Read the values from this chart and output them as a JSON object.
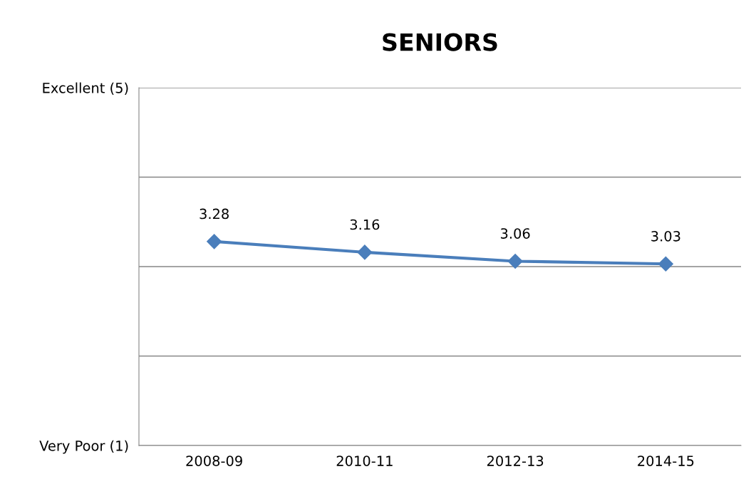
{
  "chart_data": {
    "type": "line",
    "title": "SENIORS",
    "categories": [
      "2008-09",
      "2010-11",
      "2012-13",
      "2014-15"
    ],
    "series": [
      {
        "color": "#4a7ebb",
        "values": [
          3.28,
          3.16,
          3.06,
          3.03
        ]
      }
    ],
    "ylim": [
      1,
      5
    ],
    "yticks": [
      {
        "value": 1,
        "label": "Very Poor (1)"
      },
      {
        "value": 2,
        "label": null
      },
      {
        "value": 3,
        "label": null
      },
      {
        "value": 4,
        "label": null
      },
      {
        "value": 5,
        "label": "Excellent (5)"
      }
    ],
    "grid": "y",
    "marker": "diamond",
    "line_style": "solid",
    "data_labels": true
  }
}
